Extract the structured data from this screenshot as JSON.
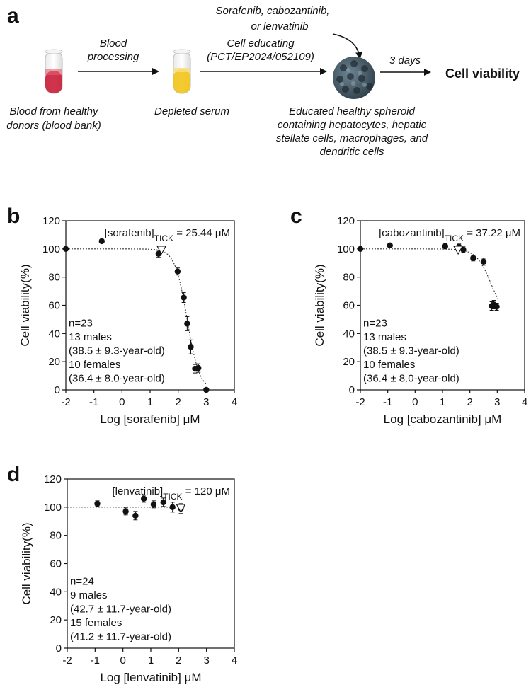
{
  "panel_a": {
    "letter": "a",
    "drug_text": [
      "Sorafenib, cabozantinib,",
      "or lenvatinib"
    ],
    "step1_label": [
      "Blood",
      "processing"
    ],
    "step2_label": [
      "Cell educating",
      "(PCT/EP2024/052109)"
    ],
    "step3_label": "3 days",
    "outcome": "Cell viability",
    "blood_caption": [
      "Blood from healthy",
      "donors (blood bank)"
    ],
    "serum_caption": "Depleted serum",
    "spheroid_caption": [
      "Educated healthy spheroid",
      "containing hepatocytes, hepatic",
      "stellate cells, macrophages, and",
      "dendritic cells"
    ],
    "colors": {
      "blood": "#c8102e",
      "serum": "#f2c418",
      "spheroid": "#3a4f5c"
    }
  },
  "chart_data": [
    {
      "panel": "b",
      "type": "scatter",
      "title_main": "[sorafenib]",
      "title_sub": "TICK",
      "title_value": " = 25.44 μM",
      "xlabel": "Log [sorafenib] μM",
      "ylabel": "Cell viability(%)",
      "xlim": [
        -2,
        4
      ],
      "ylim": [
        0,
        120
      ],
      "xticks": [
        -2,
        -1,
        0,
        1,
        2,
        3,
        4
      ],
      "yticks": [
        0,
        20,
        40,
        60,
        80,
        100,
        120
      ],
      "x": [
        -2.0,
        -0.72,
        1.3,
        1.98,
        2.2,
        2.32,
        2.45,
        2.6,
        2.72,
        3.0
      ],
      "y": [
        100,
        105.5,
        96.5,
        84,
        65.5,
        47,
        30.5,
        15,
        15.5,
        0
      ],
      "errors": [
        0,
        0,
        2.5,
        2.5,
        3.5,
        5,
        5,
        3,
        3,
        0
      ],
      "fit": {
        "top": 100,
        "bottom": 0,
        "log_ic50": 2.32,
        "hill": 2.0
      },
      "marker_x": 1.406,
      "notes": [
        "n=23",
        "13 males",
        "(38.5 ± 9.3-year-old)",
        "10 females",
        "(36.4 ± 8.0-year-old)"
      ]
    },
    {
      "panel": "c",
      "type": "scatter",
      "title_main": "[cabozantinib]",
      "title_sub": "TICK",
      "title_value": " = 37.22 μM",
      "xlabel": "Log [cabozantinib] μM",
      "ylabel": "Cell viability(%)",
      "xlim": [
        -2,
        4
      ],
      "ylim": [
        0,
        120
      ],
      "xticks": [
        -2,
        -1,
        0,
        1,
        2,
        3,
        4
      ],
      "yticks": [
        0,
        20,
        40,
        60,
        80,
        100,
        120
      ],
      "x": [
        -2.0,
        -0.92,
        1.1,
        1.6,
        1.76,
        2.12,
        2.5,
        2.8,
        2.88,
        2.98
      ],
      "y": [
        100,
        102.5,
        102,
        101.5,
        99.5,
        93.5,
        91,
        59.5,
        60.5,
        59
      ],
      "errors": [
        0,
        0,
        2,
        2,
        2,
        2,
        2.5,
        3,
        3,
        2.5
      ],
      "fit": {
        "top": 100,
        "bottom": 50,
        "log_ic50": 2.78,
        "hill": 1.6
      },
      "marker_x": 1.571,
      "notes": [
        "n=23",
        "13 males",
        "(38.5 ± 9.3-year-old)",
        "10 females",
        "(36.4 ± 8.0-year-old)"
      ]
    },
    {
      "panel": "d",
      "type": "scatter",
      "title_main": "[lenvatinib]",
      "title_sub": "TICK",
      "title_value": " = 120 μM",
      "xlabel": "Log [lenvatinib] μM",
      "ylabel": "Cell viability(%)",
      "xlim": [
        -2,
        4
      ],
      "ylim": [
        0,
        120
      ],
      "xticks": [
        -2,
        -1,
        0,
        1,
        2,
        3,
        4
      ],
      "yticks": [
        0,
        20,
        40,
        60,
        80,
        100,
        120
      ],
      "x": [
        -0.92,
        0.1,
        0.45,
        0.75,
        1.1,
        1.45,
        1.78,
        2.08
      ],
      "y": [
        102.5,
        97,
        94,
        106,
        102,
        103.5,
        100,
        99
      ],
      "errors": [
        2,
        2.5,
        3,
        2.5,
        2.5,
        3,
        3.5,
        3.5
      ],
      "fit": {
        "flat": 100
      },
      "marker_x": 2.079,
      "notes": [
        "n=24",
        "9 males",
        "(42.7 ± 11.7-year-old)",
        "15 females",
        "(41.2 ± 11.7-year-old)"
      ]
    }
  ]
}
